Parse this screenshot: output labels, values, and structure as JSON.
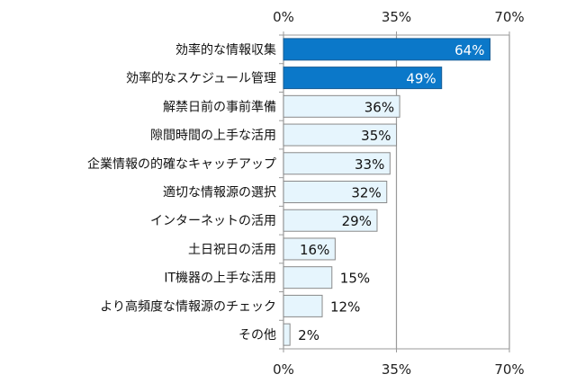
{
  "chart_data": {
    "type": "bar",
    "orientation": "horizontal",
    "categories": [
      "効率的な情報収集",
      "効率的なスケジュール管理",
      "解禁日前の事前準備",
      "隙間時間の上手な活用",
      "企業情報の的確なキャッチアップ",
      "適切な情報源の選択",
      "インターネットの活用",
      "土日祝日の活用",
      "IT機器の上手な活用",
      "より高頻度な情報源のチェック",
      "その他"
    ],
    "values": [
      64,
      49,
      36,
      35,
      33,
      32,
      29,
      16,
      15,
      12,
      2
    ],
    "value_labels": [
      "64%",
      "49%",
      "36%",
      "35%",
      "33%",
      "32%",
      "29%",
      "16%",
      "15%",
      "12%",
      "2%"
    ],
    "xlim": [
      0,
      70
    ],
    "ticks": [
      0,
      35,
      70
    ],
    "tick_labels": [
      "0%",
      "35%",
      "70%"
    ],
    "grid": true,
    "highlight_count": 2,
    "colors": {
      "highlight": "#0b78c9",
      "normal": "#e6f5fd",
      "border": "#8a8a8a",
      "grid": "#9a9a9a"
    }
  }
}
